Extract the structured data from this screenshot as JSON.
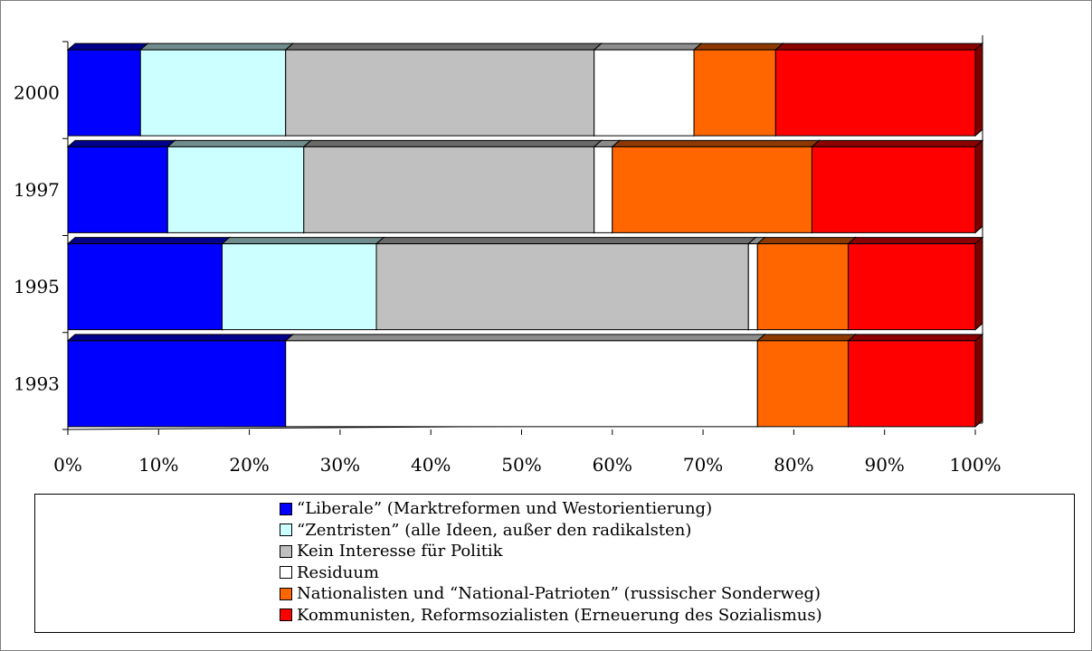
{
  "chart_data": {
    "type": "bar",
    "orientation": "horizontal",
    "stacked": "percent",
    "three_d": true,
    "categories": [
      "2000",
      "1997",
      "1995",
      "1993"
    ],
    "x_ticks": [
      "0%",
      "10%",
      "20%",
      "30%",
      "40%",
      "50%",
      "60%",
      "70%",
      "80%",
      "90%",
      "100%"
    ],
    "xlim": [
      0,
      100
    ],
    "grid": false,
    "legend_position": "bottom",
    "series": [
      {
        "name": "“Liberale” (Marktreformen und Westorientierung)",
        "color": "#0000ff",
        "values": [
          8,
          11,
          17,
          24
        ]
      },
      {
        "name": "“Zentristen” (alle Ideen, außer den radikalsten)",
        "color": "#ccffff",
        "values": [
          16,
          15,
          17,
          0
        ]
      },
      {
        "name": "Kein Interesse für Politik",
        "color": "#c0c0c0",
        "values": [
          34,
          32,
          41,
          0
        ]
      },
      {
        "name": "Residuum",
        "color": "#ffffff",
        "values": [
          11,
          2,
          1,
          52
        ]
      },
      {
        "name": "Nationalisten und “National-Patrioten” (russischer Sonderweg)",
        "color": "#ff6600",
        "values": [
          9,
          22,
          10,
          10
        ]
      },
      {
        "name": "Kommunisten, Reformsozialisten (Erneuerung des Sozialismus)",
        "color": "#ff0000",
        "values": [
          22,
          18,
          14,
          14
        ]
      }
    ]
  }
}
